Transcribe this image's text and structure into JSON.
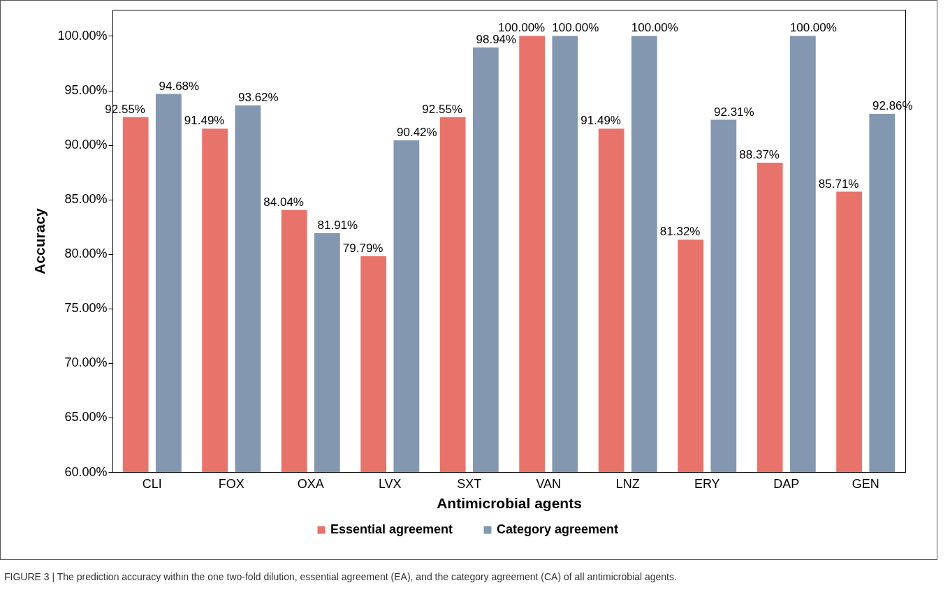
{
  "chart_data": {
    "type": "bar",
    "xlabel": "Antimicrobial agents",
    "ylabel": "Accuracy",
    "categories": [
      "CLI",
      "FOX",
      "OXA",
      "LVX",
      "SXT",
      "VAN",
      "LNZ",
      "ERY",
      "DAP",
      "GEN"
    ],
    "series": [
      {
        "name": "Essential agreement",
        "color": "#e8736b",
        "values": [
          92.55,
          91.49,
          84.04,
          79.79,
          92.55,
          100,
          91.49,
          81.32,
          88.37,
          85.71
        ],
        "value_labels": [
          "92.55%",
          "91.49%",
          "84.04%",
          "79.79%",
          "92.55%",
          "100.00%",
          "91.49%",
          "81.32%",
          "88.37%",
          "85.71%"
        ]
      },
      {
        "name": "Category agreement",
        "color": "#8497b0",
        "values": [
          94.68,
          93.62,
          81.91,
          90.42,
          98.94,
          100,
          100,
          92.31,
          100,
          92.86
        ],
        "value_labels": [
          "94.68%",
          "93.62%",
          "81.91%",
          "90.42%",
          "98.94%",
          "100.00%",
          "100.00%",
          "92.31%",
          "100.00%",
          "92.86%"
        ]
      }
    ],
    "ylim": [
      60,
      102.4
    ],
    "yticks": [
      {
        "value": 60,
        "label": "60.00%"
      },
      {
        "value": 65,
        "label": "65.00%"
      },
      {
        "value": 70,
        "label": "70.00%"
      },
      {
        "value": 75,
        "label": "75.00%"
      },
      {
        "value": 80,
        "label": "80.00%"
      },
      {
        "value": 85,
        "label": "85.00%"
      },
      {
        "value": 90,
        "label": "90.00%"
      },
      {
        "value": 95,
        "label": "95.00%"
      },
      {
        "value": 100,
        "label": "100.00%"
      }
    ],
    "grid": false,
    "legend": "bottom",
    "annotations": [
      "FIGURE 3 | The prediction accuracy within the one two-fold dilution, essential agreement (EA), and the category agreement (CA) of all antimicrobial agents."
    ]
  }
}
